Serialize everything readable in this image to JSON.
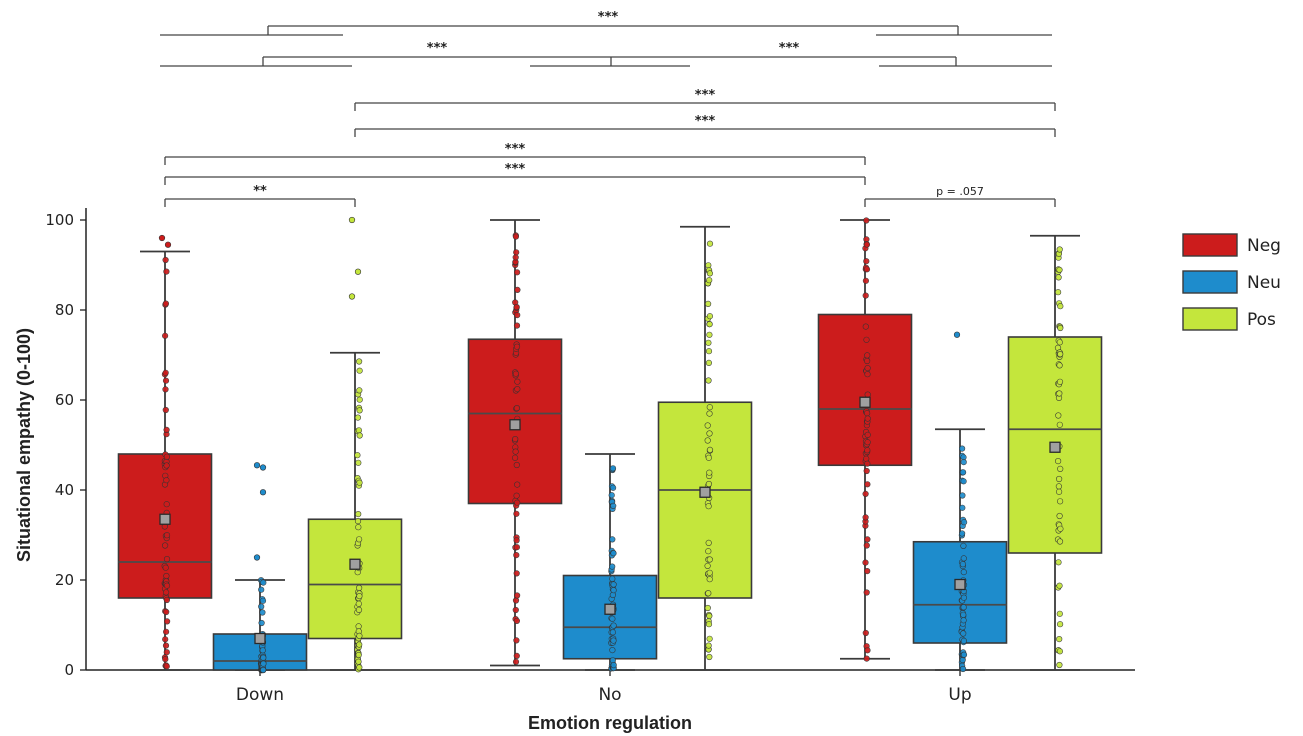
{
  "chart_data": {
    "type": "box",
    "xlabel": "Emotion regulation",
    "ylabel": "Situational empathy (0-100)",
    "categories": [
      "Down",
      "No",
      "Up"
    ],
    "ylim": [
      0,
      100
    ],
    "yticks": [
      0,
      20,
      40,
      60,
      80,
      100
    ],
    "legend": {
      "position": "right",
      "entries": [
        "Neg",
        "Neu",
        "Pos"
      ]
    },
    "colors": {
      "Neg": "#cc1c1c",
      "Neu": "#1e8ccc",
      "Pos": "#c4e63c",
      "mean_marker": "#a0a0a0"
    },
    "series": [
      {
        "name": "Neg",
        "boxes": [
          {
            "category": "Down",
            "whisker_low": 0,
            "q1": 16,
            "median": 24,
            "q3": 48,
            "whisker_high": 93,
            "mean": 33.5
          },
          {
            "category": "No",
            "whisker_low": 1,
            "q1": 37,
            "median": 57,
            "q3": 73.5,
            "whisker_high": 100,
            "mean": 54.5
          },
          {
            "category": "Up",
            "whisker_low": 2.5,
            "q1": 45.5,
            "median": 58,
            "q3": 79,
            "whisker_high": 100,
            "mean": 59.5
          }
        ]
      },
      {
        "name": "Neu",
        "boxes": [
          {
            "category": "Down",
            "whisker_low": 0,
            "q1": 0,
            "median": 2,
            "q3": 8,
            "whisker_high": 20,
            "mean": 7
          },
          {
            "category": "No",
            "whisker_low": 0,
            "q1": 2.5,
            "median": 9.5,
            "q3": 21,
            "whisker_high": 48,
            "mean": 13.5
          },
          {
            "category": "Up",
            "whisker_low": 0,
            "q1": 6,
            "median": 14.5,
            "q3": 28.5,
            "whisker_high": 53.5,
            "mean": 19
          }
        ]
      },
      {
        "name": "Pos",
        "boxes": [
          {
            "category": "Down",
            "whisker_low": 0,
            "q1": 7,
            "median": 19,
            "q3": 33.5,
            "whisker_high": 70.5,
            "mean": 23.5
          },
          {
            "category": "No",
            "whisker_low": 0,
            "q1": 16,
            "median": 40,
            "q3": 59.5,
            "whisker_high": 98.5,
            "mean": 39.5
          },
          {
            "category": "Up",
            "whisker_low": 0,
            "q1": 26,
            "median": 53.5,
            "q3": 74,
            "whisker_high": 96.5,
            "mean": 49.5
          }
        ]
      }
    ],
    "outliers": [
      {
        "series": "Neg",
        "category": "Down",
        "values": [
          96,
          94.5
        ]
      },
      {
        "series": "Neu",
        "category": "Down",
        "values": [
          25,
          39.5,
          45.5,
          45
        ]
      },
      {
        "series": "Pos",
        "category": "Down",
        "values": [
          83,
          88.5,
          100
        ]
      },
      {
        "series": "Neu",
        "category": "Up",
        "values": [
          74.5
        ]
      }
    ],
    "significance": [
      {
        "label": "***",
        "from": [
          "Down",
          "Neg"
        ],
        "to": [
          "Up",
          "Neg"
        ]
      },
      {
        "label": "***",
        "from": [
          "Down",
          "Pos"
        ],
        "to": [
          "Up",
          "Pos"
        ]
      },
      {
        "label": "**",
        "from": [
          "Down",
          "Neg"
        ],
        "to": [
          "Down",
          "Pos"
        ]
      },
      {
        "label": "p = .057",
        "from": [
          "Up",
          "Neg"
        ],
        "to": [
          "Up",
          "Pos"
        ]
      }
    ]
  }
}
